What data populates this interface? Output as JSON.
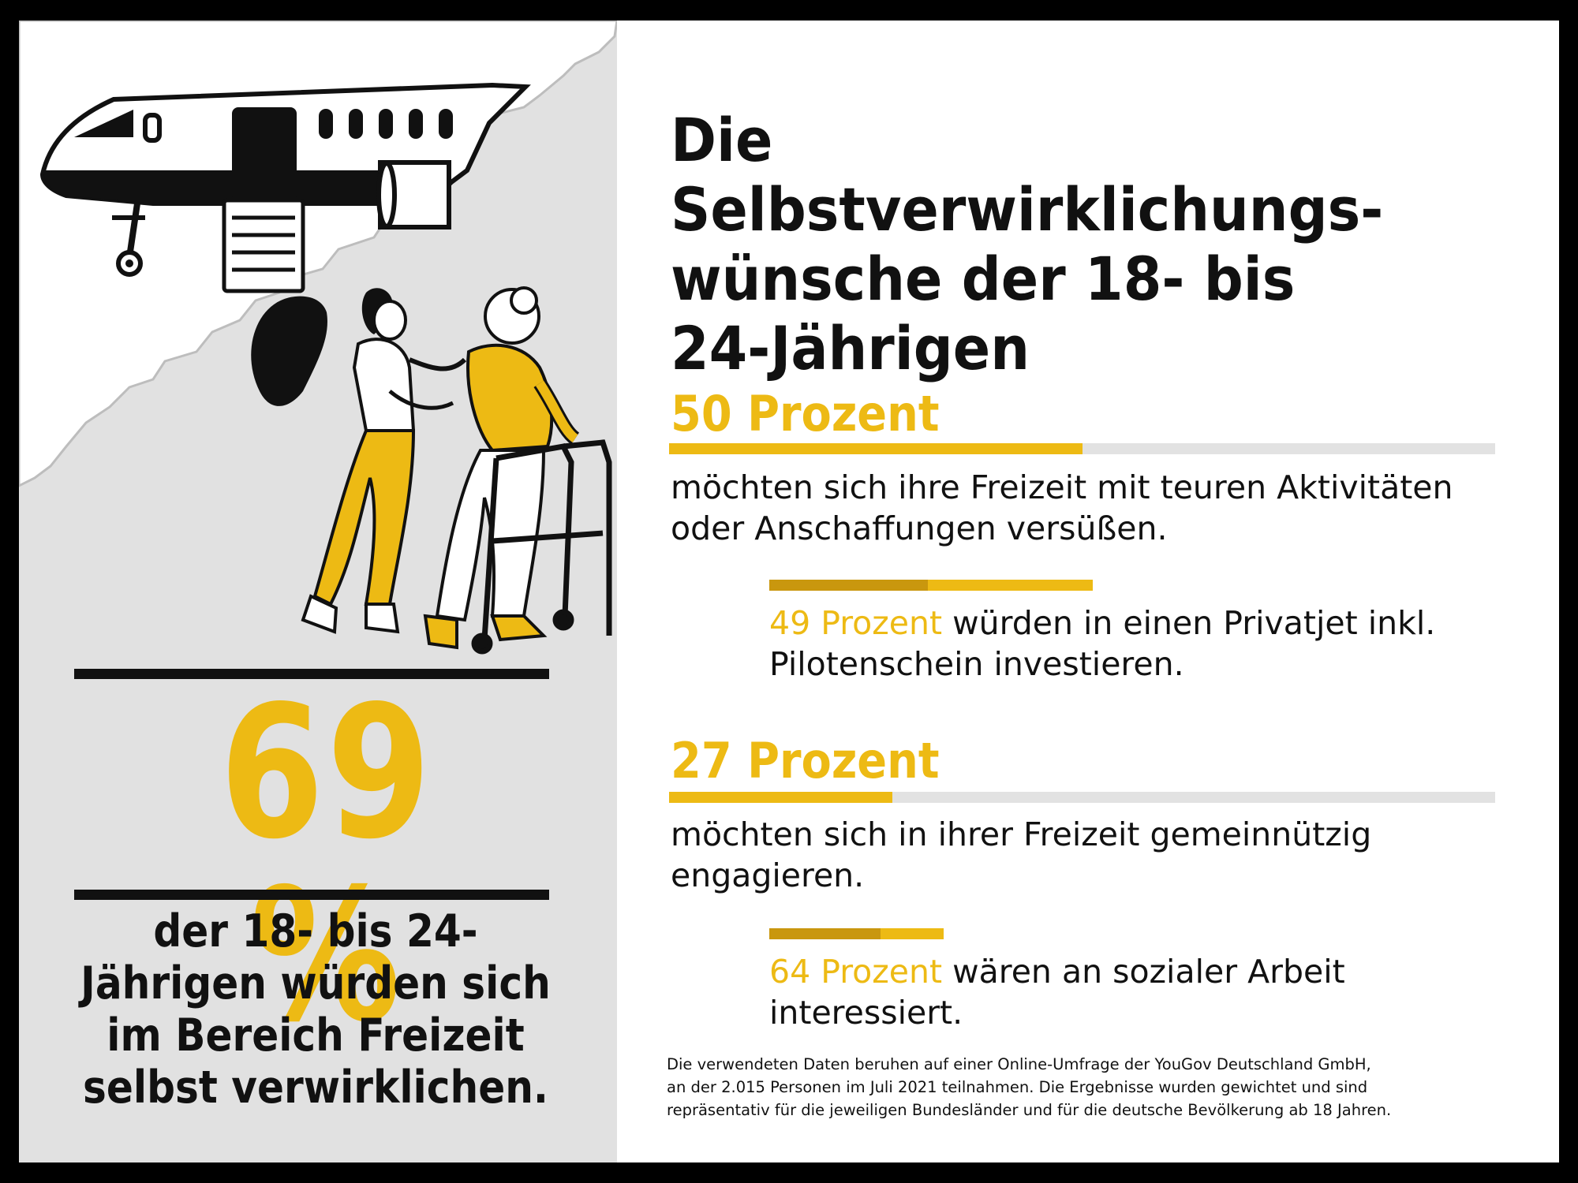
{
  "colors": {
    "accent": "#EDBA14",
    "accent_dark": "#C9970E",
    "text": "#111111",
    "track": "#E2E2E2",
    "panel": "#E1E1E1"
  },
  "left": {
    "big_number": "69 %",
    "caption": "der 18- bis 24-Jährigen würden sich im Bereich Freizeit selbst verwirklichen.",
    "illustrations": [
      "airplane-icon",
      "caregiver-with-elderly-person-icon",
      "walker-icon"
    ]
  },
  "title": "Die Selbstverwirklichungs-\nwünsche der 18- bis\n24-Jährigen",
  "stats": [
    {
      "heading": "50 Prozent",
      "value": 50,
      "description": "möchten sich ihre Freizeit mit teuren Aktivitäten oder Anschaffungen versüßen.",
      "sub": {
        "highlight": "49 Prozent",
        "text": " würden in einen Privatjet inkl. Pilotenschein investieren.",
        "value": 49
      }
    },
    {
      "heading": "27 Prozent",
      "value": 27,
      "description": "möchten sich in ihrer Freizeit gemeinnützig engagieren.",
      "sub": {
        "highlight": "64 Prozent",
        "text": " wären an sozialer Arbeit interessiert.",
        "value": 64
      }
    }
  ],
  "footnote": {
    "line1": "Die verwendeten Daten beruhen auf einer Online-Umfrage der YouGov Deutschland GmbH,",
    "line2": "an der 2.015 Personen im Juli 2021 teilnahmen. Die Ergebnisse wurden gewichtet und sind",
    "line3": "repräsentativ für die jeweiligen Bundesländer und für die deutsche Bevölkerung ab 18 Jahren."
  }
}
